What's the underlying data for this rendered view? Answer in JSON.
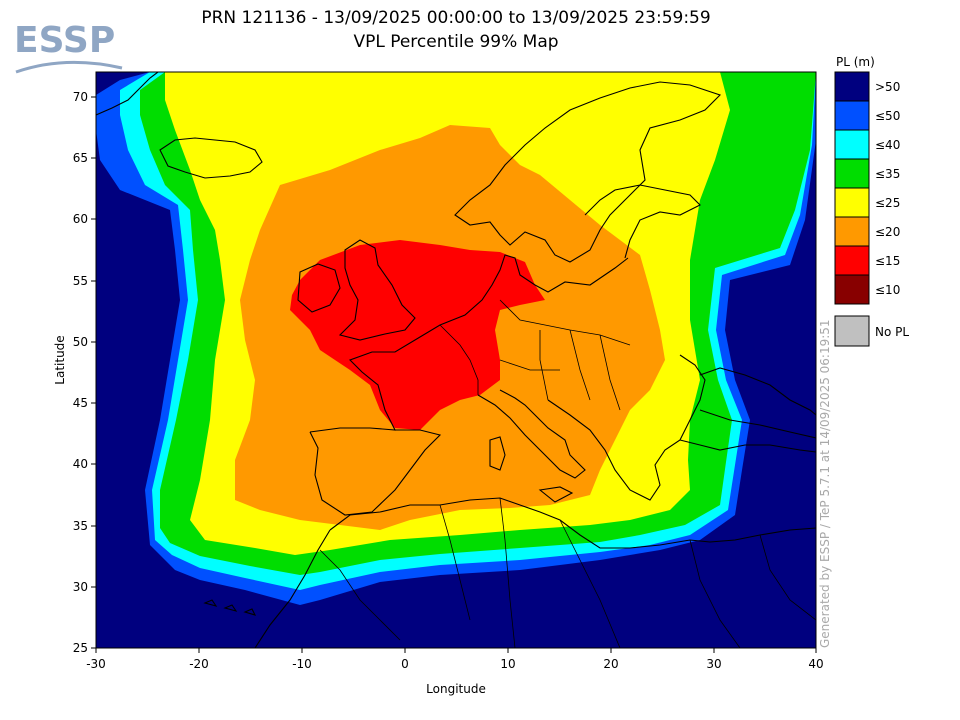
{
  "title": {
    "line1": "PRN 121136 - 13/09/2025 00:00:00 to 13/09/2025 23:59:59",
    "line2": "VPL Percentile 99% Map"
  },
  "logo": {
    "text": "ESSP",
    "color": "#8fa6c4"
  },
  "axes": {
    "xlabel": "Longitude",
    "ylabel": "Latitude",
    "xlim": [
      -30,
      40
    ],
    "ylim": [
      25,
      72
    ],
    "xticks": [
      "-30",
      "-20",
      "-10",
      "0",
      "10",
      "20",
      "30",
      "40"
    ],
    "yticks": [
      "25",
      "30",
      "35",
      "40",
      "45",
      "50",
      "55",
      "60",
      "65",
      "70"
    ]
  },
  "legend": {
    "title": "PL (m)",
    "items": [
      {
        "label": ">50",
        "color": "#00007f"
      },
      {
        "label": "≤50",
        "color": "#0050ff"
      },
      {
        "label": "≤40",
        "color": "#00ffff"
      },
      {
        "label": "≤35",
        "color": "#00dd00"
      },
      {
        "label": "≤25",
        "color": "#ffff00"
      },
      {
        "label": "≤20",
        "color": "#ff9900"
      },
      {
        "label": "≤15",
        "color": "#ff0000"
      },
      {
        "label": "≤10",
        "color": "#880000"
      }
    ],
    "no_pl": {
      "label": "No PL",
      "color": "#c0c0c0"
    }
  },
  "watermark": "Generated by ESSP / TeP 5.7.1 at 14/09/2025 06:19:51"
}
